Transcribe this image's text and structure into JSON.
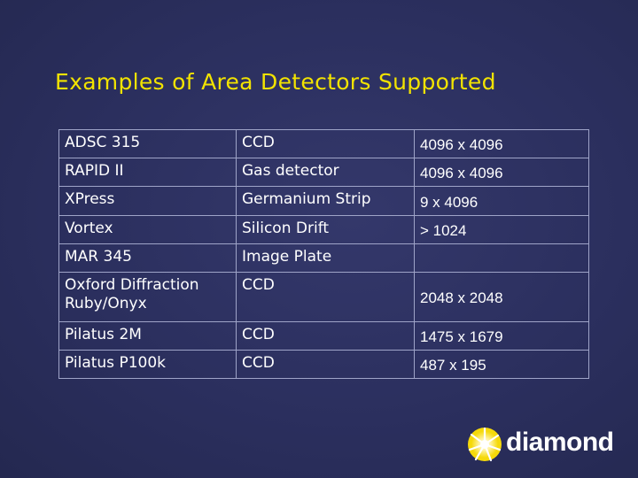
{
  "slide": {
    "title": "Examples of Area Detectors Supported"
  },
  "table": {
    "rows": [
      {
        "model": "ADSC 315",
        "type": "CCD",
        "size": "4096 x 4096"
      },
      {
        "model": "RAPID II",
        "type": "Gas detector",
        "size": "4096 x 4096"
      },
      {
        "model": "XPress",
        "type": "Germanium Strip",
        "size": "9 x 4096"
      },
      {
        "model": "Vortex",
        "type": "Silicon Drift",
        "size": "> 1024"
      },
      {
        "model": "MAR 345",
        "type": "Image Plate",
        "size": ""
      },
      {
        "model": "Oxford Diffraction Ruby/Onyx",
        "type": "CCD",
        "size": "2048 x 2048"
      },
      {
        "model": "Pilatus 2M",
        "type": "CCD",
        "size": "1475 x 1679"
      },
      {
        "model": "Pilatus P100k",
        "type": "CCD",
        "size": "487 x 195"
      }
    ]
  },
  "logo": {
    "text": "diamond",
    "icon": "diamond-light-source-sunburst-icon",
    "colors": {
      "yellow": "#f5d90a",
      "white": "#ffffff"
    }
  },
  "colors": {
    "background": "#2b2f5e",
    "title": "#f2e300",
    "text": "#ffffff",
    "table_border": "#9fa4c8"
  }
}
